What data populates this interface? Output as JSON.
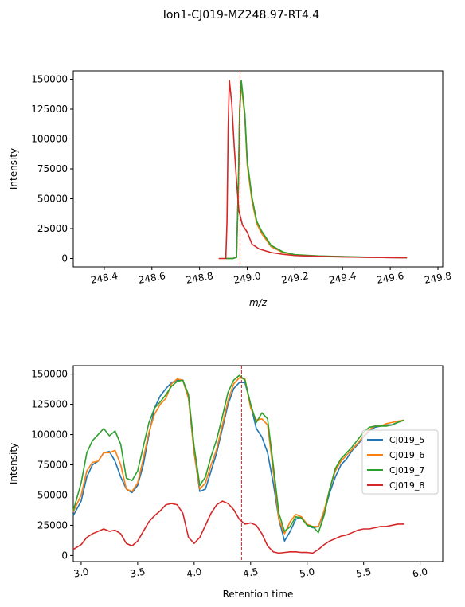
{
  "figure_title": "Ion1-CJ019-MZ248.97-RT4.4",
  "colors": {
    "CJ019_5": "#1f77b4",
    "CJ019_6": "#ff7f0e",
    "CJ019_7": "#2ca02c",
    "CJ019_8": "#d62728",
    "marker": "#d62728"
  },
  "chart_data": [
    {
      "type": "line",
      "xlabel": "m/z",
      "ylabel": "Intensity",
      "xlim": [
        248.27,
        249.82
      ],
      "ylim": [
        -7000,
        157000
      ],
      "xticks": [
        "248.4",
        "248.6",
        "248.8",
        "249.0",
        "249.2",
        "249.4",
        "249.6",
        "249.8"
      ],
      "yticks": [
        "0",
        "25000",
        "50000",
        "75000",
        "100000",
        "125000",
        "150000"
      ],
      "marker_x": 248.97,
      "series": [
        {
          "key": "CJ019_5",
          "x": [
            248.91,
            248.94,
            248.955,
            248.963,
            248.968,
            248.975,
            248.99,
            249.0,
            249.02,
            249.04,
            249.06,
            249.1,
            249.15,
            249.2,
            249.3,
            249.4,
            249.5,
            249.6,
            249.67
          ],
          "y": [
            0,
            0,
            1000,
            60000,
            120000,
            148000,
            120000,
            80000,
            50000,
            30000,
            22000,
            10000,
            5000,
            3000,
            2000,
            1500,
            1000,
            800,
            700
          ]
        },
        {
          "key": "CJ019_6",
          "x": [
            248.91,
            248.94,
            248.955,
            248.963,
            248.968,
            248.975,
            248.99,
            249.0,
            249.02,
            249.04,
            249.06,
            249.1,
            249.15,
            249.2,
            249.3,
            249.4,
            249.5,
            249.6,
            249.67
          ],
          "y": [
            0,
            0,
            1000,
            62000,
            122000,
            146000,
            118000,
            78000,
            48000,
            29000,
            21000,
            10000,
            5000,
            3000,
            2000,
            1500,
            1000,
            800,
            700
          ]
        },
        {
          "key": "CJ019_7",
          "x": [
            248.91,
            248.94,
            248.955,
            248.963,
            248.968,
            248.975,
            248.99,
            249.0,
            249.02,
            249.04,
            249.06,
            249.1,
            249.15,
            249.2,
            249.3,
            249.4,
            249.5,
            249.6,
            249.67
          ],
          "y": [
            0,
            0,
            1000,
            64000,
            125000,
            149000,
            121000,
            82000,
            51000,
            31000,
            23000,
            11000,
            5500,
            3200,
            2100,
            1600,
            1100,
            900,
            700
          ]
        },
        {
          "key": "CJ019_8",
          "x": [
            248.88,
            248.91,
            248.915,
            248.92,
            248.925,
            248.935,
            248.945,
            248.955,
            248.965,
            248.98,
            249.0,
            249.02,
            249.05,
            249.1,
            249.15,
            249.2,
            249.3,
            249.4,
            249.5,
            249.6,
            249.67
          ],
          "y": [
            0,
            0,
            30000,
            110000,
            149000,
            130000,
            95000,
            65000,
            40000,
            28000,
            22000,
            12000,
            8000,
            5000,
            3500,
            2500,
            1800,
            1300,
            1000,
            800,
            700
          ]
        }
      ]
    },
    {
      "type": "line",
      "xlabel": "Retention time",
      "ylabel": "Intensity",
      "xlim": [
        2.93,
        6.2
      ],
      "ylim": [
        -5000,
        157000
      ],
      "xticks": [
        "3.0",
        "3.5",
        "4.0",
        "4.5",
        "5.0",
        "5.5",
        "6.0"
      ],
      "yticks": [
        "0",
        "25000",
        "50000",
        "75000",
        "100000",
        "125000",
        "150000"
      ],
      "marker_x": 4.42,
      "legend_position": "center-right",
      "series": [
        {
          "key": "CJ019_5",
          "name": "CJ019_5",
          "x": [
            2.93,
            3.0,
            3.05,
            3.1,
            3.15,
            3.2,
            3.25,
            3.3,
            3.35,
            3.4,
            3.45,
            3.5,
            3.55,
            3.6,
            3.65,
            3.7,
            3.75,
            3.8,
            3.85,
            3.9,
            3.95,
            4.0,
            4.05,
            4.1,
            4.15,
            4.2,
            4.25,
            4.3,
            4.35,
            4.4,
            4.45,
            4.5,
            4.55,
            4.6,
            4.65,
            4.7,
            4.75,
            4.8,
            4.85,
            4.9,
            4.95,
            5.0,
            5.05,
            5.1,
            5.15,
            5.2,
            5.25,
            5.3,
            5.35,
            5.4,
            5.45,
            5.5,
            5.55,
            5.6,
            5.65,
            5.7,
            5.75,
            5.8,
            5.86
          ],
          "y": [
            33000,
            45000,
            65000,
            75000,
            78000,
            85000,
            86000,
            78000,
            65000,
            55000,
            52000,
            58000,
            75000,
            100000,
            122000,
            132000,
            138000,
            143000,
            145000,
            145000,
            130000,
            85000,
            53000,
            55000,
            70000,
            85000,
            105000,
            125000,
            138000,
            143000,
            143000,
            125000,
            105000,
            98000,
            85000,
            60000,
            30000,
            12000,
            20000,
            30000,
            32000,
            25000,
            23000,
            24000,
            35000,
            52000,
            65000,
            75000,
            80000,
            87000,
            92000,
            98000,
            103000,
            106000,
            107000,
            108000,
            108000,
            110000,
            112000
          ]
        },
        {
          "key": "CJ019_6",
          "name": "CJ019_6",
          "x": [
            2.93,
            3.0,
            3.05,
            3.1,
            3.15,
            3.2,
            3.25,
            3.3,
            3.35,
            3.4,
            3.45,
            3.5,
            3.55,
            3.6,
            3.65,
            3.7,
            3.75,
            3.8,
            3.85,
            3.9,
            3.95,
            4.0,
            4.05,
            4.1,
            4.15,
            4.2,
            4.25,
            4.3,
            4.35,
            4.4,
            4.45,
            4.5,
            4.55,
            4.6,
            4.65,
            4.7,
            4.75,
            4.8,
            4.85,
            4.9,
            4.95,
            5.0,
            5.05,
            5.1,
            5.15,
            5.2,
            5.25,
            5.3,
            5.35,
            5.4,
            5.45,
            5.5,
            5.55,
            5.6,
            5.65,
            5.7,
            5.75,
            5.8,
            5.86
          ],
          "y": [
            36000,
            50000,
            70000,
            77000,
            78000,
            85000,
            85000,
            87000,
            75000,
            55000,
            53000,
            60000,
            80000,
            102000,
            117000,
            125000,
            130000,
            142000,
            146000,
            145000,
            130000,
            85000,
            55000,
            60000,
            75000,
            88000,
            108000,
            128000,
            142000,
            147000,
            146000,
            122000,
            112000,
            113000,
            108000,
            70000,
            30000,
            18000,
            28000,
            34000,
            32000,
            26000,
            24000,
            24000,
            37000,
            55000,
            70000,
            78000,
            83000,
            88000,
            93000,
            99000,
            104000,
            107000,
            107000,
            109000,
            110000,
            111000,
            112000
          ]
        },
        {
          "key": "CJ019_7",
          "name": "CJ019_7",
          "x": [
            2.93,
            3.0,
            3.05,
            3.1,
            3.15,
            3.2,
            3.25,
            3.3,
            3.35,
            3.4,
            3.45,
            3.5,
            3.55,
            3.6,
            3.65,
            3.7,
            3.75,
            3.8,
            3.85,
            3.9,
            3.95,
            4.0,
            4.05,
            4.1,
            4.15,
            4.2,
            4.25,
            4.3,
            4.35,
            4.4,
            4.45,
            4.5,
            4.55,
            4.6,
            4.65,
            4.7,
            4.75,
            4.8,
            4.85,
            4.9,
            4.95,
            5.0,
            5.05,
            5.1,
            5.15,
            5.2,
            5.25,
            5.3,
            5.35,
            5.4,
            5.45,
            5.5,
            5.55,
            5.6,
            5.65,
            5.7,
            5.75,
            5.8,
            5.86
          ],
          "y": [
            37000,
            60000,
            85000,
            95000,
            100000,
            105000,
            99000,
            103000,
            92000,
            64000,
            62000,
            70000,
            90000,
            110000,
            122000,
            127000,
            133000,
            140000,
            144000,
            145000,
            133000,
            90000,
            58000,
            65000,
            82000,
            96000,
            115000,
            135000,
            145000,
            149000,
            145000,
            125000,
            110000,
            118000,
            113000,
            75000,
            35000,
            20000,
            24000,
            32000,
            31000,
            25000,
            24000,
            19000,
            33000,
            55000,
            72000,
            80000,
            85000,
            90000,
            96000,
            102000,
            106000,
            107000,
            107000,
            107000,
            108000,
            110000,
            112000
          ]
        },
        {
          "key": "CJ019_8",
          "name": "CJ019_8",
          "x": [
            2.93,
            3.0,
            3.05,
            3.1,
            3.15,
            3.2,
            3.25,
            3.3,
            3.35,
            3.4,
            3.45,
            3.5,
            3.55,
            3.6,
            3.65,
            3.7,
            3.75,
            3.8,
            3.85,
            3.9,
            3.95,
            4.0,
            4.05,
            4.1,
            4.15,
            4.2,
            4.25,
            4.3,
            4.35,
            4.4,
            4.45,
            4.5,
            4.55,
            4.6,
            4.65,
            4.7,
            4.75,
            4.8,
            4.85,
            4.9,
            4.95,
            5.0,
            5.05,
            5.1,
            5.15,
            5.2,
            5.25,
            5.3,
            5.35,
            5.4,
            5.45,
            5.5,
            5.55,
            5.6,
            5.65,
            5.7,
            5.75,
            5.8,
            5.86
          ],
          "y": [
            5000,
            9000,
            15000,
            18000,
            20000,
            22000,
            20000,
            21000,
            18000,
            10000,
            8000,
            12000,
            20000,
            28000,
            33000,
            37000,
            42000,
            43000,
            42000,
            35000,
            15000,
            10000,
            15000,
            25000,
            35000,
            42000,
            45000,
            43000,
            38000,
            30000,
            26000,
            27000,
            25000,
            18000,
            8000,
            3000,
            2000,
            2500,
            3000,
            3000,
            2500,
            2500,
            2000,
            5000,
            9000,
            12000,
            14000,
            16000,
            17000,
            19000,
            21000,
            22000,
            22000,
            23000,
            24000,
            24000,
            25000,
            26000,
            26000
          ]
        }
      ]
    }
  ]
}
